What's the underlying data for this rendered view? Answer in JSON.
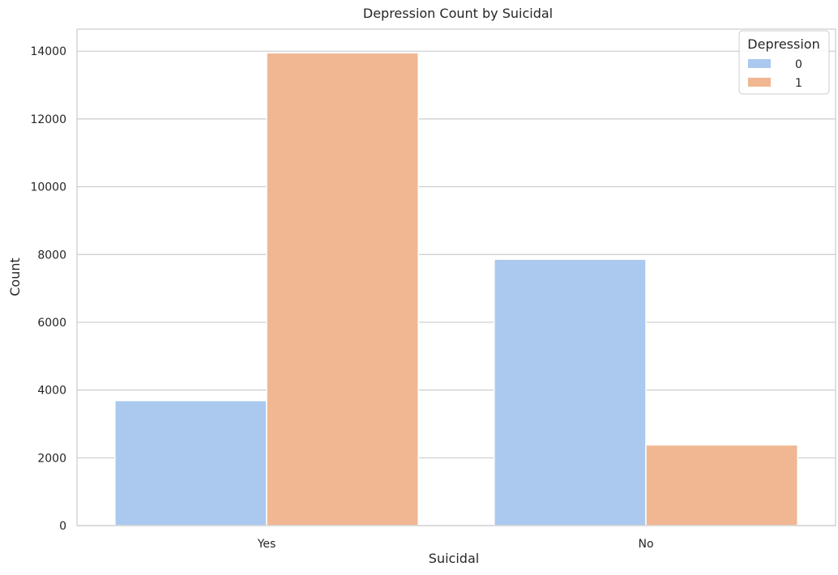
{
  "chart_data": {
    "type": "bar",
    "title": "Depression Count by Suicidal",
    "xlabel": "Suicidal",
    "ylabel": "Count",
    "categories": [
      "Yes",
      "No"
    ],
    "series": [
      {
        "name": "0",
        "values": [
          3690,
          7860
        ],
        "color": "#abc9ee"
      },
      {
        "name": "1",
        "values": [
          13950,
          2380
        ],
        "color": "#f0b792"
      }
    ],
    "ylim": [
      0,
      14650
    ],
    "yticks": [
      0,
      2000,
      4000,
      6000,
      8000,
      10000,
      12000,
      14000
    ],
    "ytick_labels": [
      "0",
      "2000",
      "4000",
      "6000",
      "8000",
      "10000",
      "12000",
      "14000"
    ],
    "grid": "horizontal",
    "legend": {
      "title": "Depression",
      "placement": "top-right"
    }
  }
}
